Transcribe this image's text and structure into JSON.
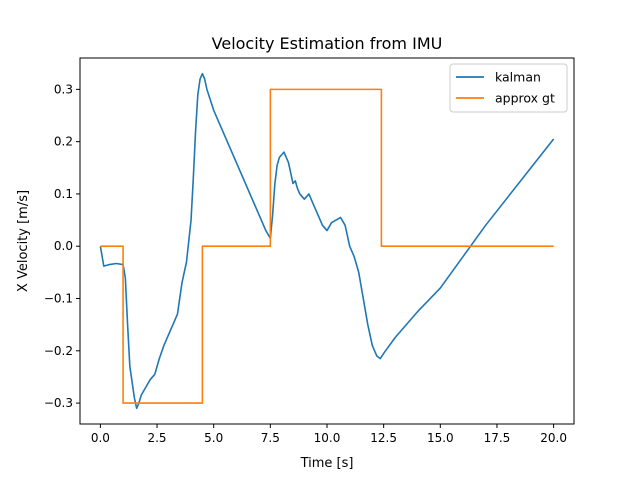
{
  "chart_data": {
    "type": "line",
    "title": "Velocity Estimation from IMU",
    "xlabel": "Time [s]",
    "ylabel": "X Velocity [m/s]",
    "xlim": [
      -0.9,
      20.9
    ],
    "ylim": [
      -0.34,
      0.36
    ],
    "xticks": [
      0.0,
      2.5,
      5.0,
      7.5,
      10.0,
      12.5,
      15.0,
      17.5,
      20.0
    ],
    "xtick_labels": [
      "0.0",
      "2.5",
      "5.0",
      "7.5",
      "10.0",
      "12.5",
      "15.0",
      "17.5",
      "20.0"
    ],
    "yticks": [
      -0.3,
      -0.2,
      -0.1,
      0.0,
      0.1,
      0.2,
      0.3
    ],
    "ytick_labels": [
      "−0.3",
      "−0.2",
      "−0.1",
      "0.0",
      "0.1",
      "0.2",
      "0.3"
    ],
    "grid": false,
    "legend_position": "top-right",
    "series": [
      {
        "name": "kalman",
        "color": "#1f77b4",
        "x": [
          0.0,
          0.15,
          0.4,
          0.7,
          1.0,
          1.1,
          1.2,
          1.3,
          1.5,
          1.6,
          1.7,
          1.8,
          2.0,
          2.2,
          2.4,
          2.6,
          2.8,
          3.0,
          3.2,
          3.4,
          3.6,
          3.8,
          4.0,
          4.1,
          4.2,
          4.3,
          4.4,
          4.5,
          4.6,
          4.7,
          5.0,
          5.5,
          6.0,
          6.5,
          7.0,
          7.3,
          7.5,
          7.6,
          7.7,
          7.8,
          7.9,
          8.0,
          8.1,
          8.2,
          8.3,
          8.4,
          8.5,
          8.6,
          8.7,
          8.8,
          9.0,
          9.2,
          9.4,
          9.6,
          9.8,
          10.0,
          10.2,
          10.4,
          10.6,
          10.8,
          11.0,
          11.2,
          11.4,
          11.6,
          11.8,
          12.0,
          12.2,
          12.35,
          12.5,
          13.0,
          14.0,
          15.0,
          16.0,
          17.0,
          18.0,
          19.0,
          20.0
        ],
        "y": [
          0.0,
          -0.038,
          -0.035,
          -0.033,
          -0.035,
          -0.06,
          -0.15,
          -0.23,
          -0.29,
          -0.31,
          -0.3,
          -0.285,
          -0.27,
          -0.255,
          -0.245,
          -0.215,
          -0.19,
          -0.17,
          -0.15,
          -0.13,
          -0.07,
          -0.03,
          0.05,
          0.13,
          0.22,
          0.29,
          0.32,
          0.33,
          0.32,
          0.3,
          0.26,
          0.21,
          0.16,
          0.11,
          0.06,
          0.03,
          0.015,
          0.06,
          0.12,
          0.155,
          0.17,
          0.175,
          0.18,
          0.17,
          0.16,
          0.14,
          0.12,
          0.125,
          0.11,
          0.1,
          0.09,
          0.1,
          0.08,
          0.06,
          0.04,
          0.03,
          0.045,
          0.05,
          0.055,
          0.04,
          0.0,
          -0.02,
          -0.05,
          -0.1,
          -0.15,
          -0.19,
          -0.21,
          -0.215,
          -0.205,
          -0.175,
          -0.125,
          -0.08,
          -0.02,
          0.04,
          0.095,
          0.15,
          0.205
        ]
      },
      {
        "name": "approx gt",
        "color": "#ff7f0e",
        "x": [
          0.0,
          1.0,
          1.0,
          4.5,
          4.5,
          7.5,
          7.5,
          12.4,
          12.4,
          20.0
        ],
        "y": [
          0.0,
          0.0,
          -0.3,
          -0.3,
          0.0,
          0.0,
          0.3,
          0.3,
          0.0,
          0.0
        ]
      }
    ]
  }
}
